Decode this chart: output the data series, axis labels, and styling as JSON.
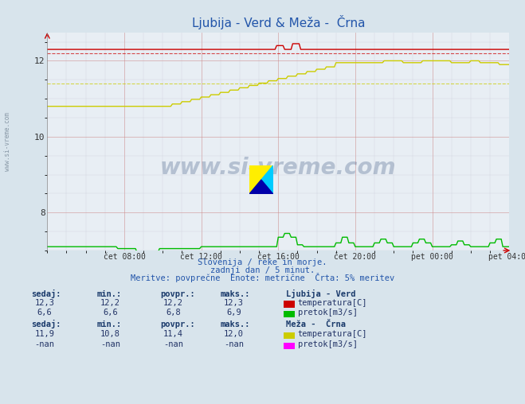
{
  "title": "Ljubija - Verd & Meža -  Črna",
  "title_color": "#2255aa",
  "bg_color": "#d8e4ec",
  "plot_bg_color": "#e8eef4",
  "xlabel_ticks": [
    "čet 08:00",
    "čet 12:00",
    "čet 16:00",
    "čet 20:00",
    "pet 00:00",
    "pet 04:00"
  ],
  "ylabel_ticks": [
    "8",
    "10",
    "12"
  ],
  "ylim_bottom": 7.0,
  "ylim_top": 12.75,
  "xlim": [
    0,
    288
  ],
  "tick_positions": [
    48,
    96,
    144,
    192,
    240,
    288
  ],
  "footnote1": "Slovenija / reke in morje.",
  "footnote2": "zadnji dan / 5 minut.",
  "footnote3": "Meritve: povprečne  Enote: metrične  Črta: 5% meritev",
  "watermark": "www.si-vreme.com",
  "watermark_color": "#1a3a6b",
  "watermark_alpha": 0.25,
  "grid_color_major": "#cc8888",
  "grid_color_minor": "#bbbbcc",
  "line1_color": "#cc0000",
  "line2_color": "#00bb00",
  "line3_color": "#cccc00",
  "line4_color": "#ff00ff",
  "avg1_color": "#cc0000",
  "avg3_color": "#cccc00",
  "station1_name": "Ljubija - Verd",
  "station1_temp_sedaj": "12,3",
  "station1_temp_min": "12,2",
  "station1_temp_povpr": "12,2",
  "station1_temp_maks": "12,3",
  "station1_pretok_sedaj": "6,6",
  "station1_pretok_min": "6,6",
  "station1_pretok_povpr": "6,8",
  "station1_pretok_maks": "6,9",
  "station2_name": "Meža -  Črna",
  "station2_temp_sedaj": "11,9",
  "station2_temp_min": "10,8",
  "station2_temp_povpr": "11,4",
  "station2_temp_maks": "12,0",
  "station2_pretok_sedaj": "-nan",
  "station2_pretok_min": "-nan",
  "station2_pretok_povpr": "-nan",
  "station2_pretok_maks": "-nan"
}
